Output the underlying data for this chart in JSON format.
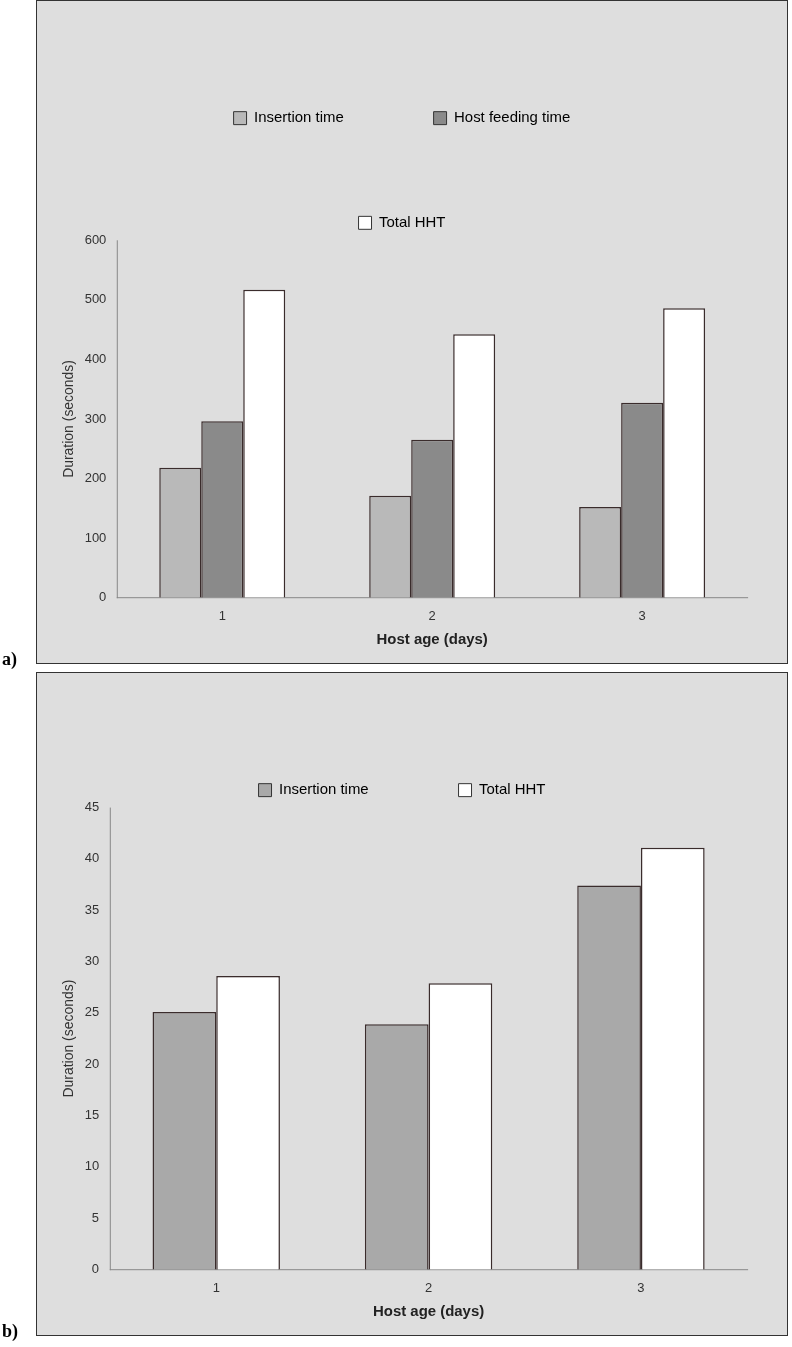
{
  "chart_data": [
    {
      "type": "bar",
      "xlabel": "Host age (days)",
      "ylabel": "Duration (seconds)",
      "categories": [
        "1",
        "2",
        "3"
      ],
      "series": [
        {
          "name": "Insertion time",
          "color": "#b9b9b9",
          "values": [
            218,
            171,
            152
          ]
        },
        {
          "name": "Host feeding time",
          "color": "#8a8a8a",
          "values": [
            296,
            265,
            327
          ]
        },
        {
          "name": "Total HHT",
          "color": "#ffffff",
          "values": [
            517,
            442,
            486
          ]
        }
      ],
      "ylim": [
        0,
        600
      ],
      "yticks": [
        0,
        100,
        200,
        300,
        400,
        500,
        600
      ],
      "grid": false,
      "legend": "top",
      "annotations": [
        "a)"
      ]
    },
    {
      "type": "bar",
      "xlabel": "Host age (days)",
      "ylabel": "Duration (seconds)",
      "categories": [
        "1",
        "2",
        "3"
      ],
      "series": [
        {
          "name": "Insertion time",
          "color": "#a9a9a9",
          "values": [
            25.1,
            23.9,
            37.4
          ]
        },
        {
          "name": "Total HHT",
          "color": "#ffffff",
          "values": [
            28.6,
            27.9,
            41.1
          ]
        }
      ],
      "ylim": [
        0,
        45
      ],
      "yticks": [
        0,
        5,
        10,
        15,
        20,
        25,
        30,
        35,
        40,
        45
      ],
      "grid": false,
      "legend": "top",
      "annotations": [
        "b)"
      ]
    }
  ]
}
